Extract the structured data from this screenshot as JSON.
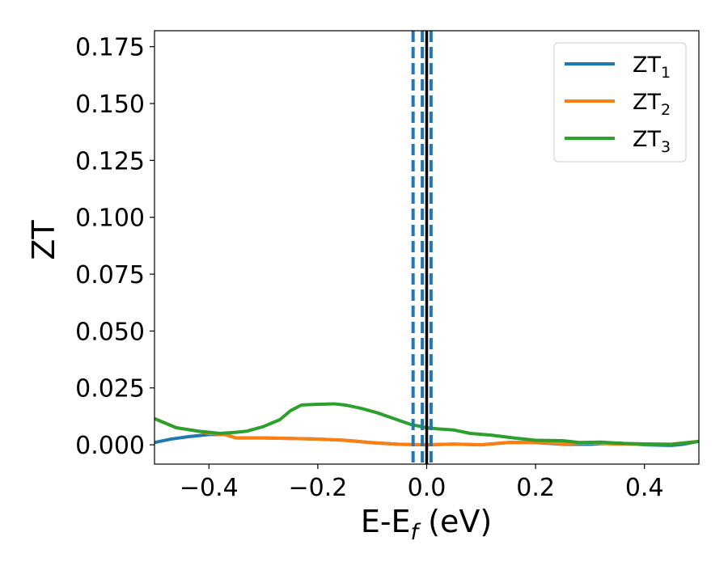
{
  "chart_data": {
    "type": "line",
    "xlabel": "E-E",
    "xlabel_sub": "f",
    "xlabel_unit": " (eV)",
    "ylabel": "ZT",
    "xlim": [
      -0.5,
      0.5
    ],
    "ylim": [
      -0.0085,
      0.182
    ],
    "xticks": [
      -0.4,
      -0.2,
      0.0,
      0.2,
      0.4
    ],
    "xtick_labels": [
      "−0.4",
      "−0.2",
      "0.0",
      "0.2",
      "0.4"
    ],
    "yticks": [
      0.0,
      0.025,
      0.05,
      0.075,
      0.1,
      0.125,
      0.15,
      0.175
    ],
    "ytick_labels": [
      "0.000",
      "0.025",
      "0.050",
      "0.075",
      "0.100",
      "0.125",
      "0.150",
      "0.175"
    ],
    "grid": false,
    "legend_position": "top-right",
    "series": [
      {
        "name": "ZT",
        "sub": "1",
        "color": "#1f77b4",
        "points": [
          [
            -0.5,
            0.001
          ],
          [
            -0.47,
            0.0025
          ],
          [
            -0.44,
            0.0035
          ],
          [
            -0.4,
            0.0045
          ],
          [
            -0.37,
            0.0045
          ],
          [
            -0.35,
            0.003
          ],
          [
            -0.3,
            0.003
          ],
          [
            -0.25,
            0.0028
          ],
          [
            -0.2,
            0.0025
          ],
          [
            -0.15,
            0.002
          ],
          [
            -0.1,
            0.0009
          ],
          [
            -0.05,
            0.0002
          ],
          [
            0.0,
            0.0
          ],
          [
            0.05,
            0.0003
          ],
          [
            0.1,
            0.0
          ],
          [
            0.15,
            0.001
          ],
          [
            0.2,
            0.001
          ],
          [
            0.25,
            0.0002
          ],
          [
            0.3,
            0.0002
          ],
          [
            0.35,
            0.0008
          ],
          [
            0.4,
            0.0
          ],
          [
            0.45,
            -0.0003
          ],
          [
            0.47,
            0.0002
          ],
          [
            0.5,
            0.0015
          ]
        ]
      },
      {
        "name": "ZT",
        "sub": "2",
        "color": "#ff7f0e",
        "points": [
          [
            -0.5,
            0.0115
          ],
          [
            -0.46,
            0.0075
          ],
          [
            -0.42,
            0.006
          ],
          [
            -0.4,
            0.005
          ],
          [
            -0.37,
            0.0045
          ],
          [
            -0.35,
            0.003
          ],
          [
            -0.3,
            0.003
          ],
          [
            -0.25,
            0.0028
          ],
          [
            -0.2,
            0.0025
          ],
          [
            -0.15,
            0.002
          ],
          [
            -0.1,
            0.0009
          ],
          [
            -0.05,
            0.0002
          ],
          [
            0.0,
            0.0
          ],
          [
            0.05,
            0.0003
          ],
          [
            0.1,
            0.0
          ],
          [
            0.15,
            0.001
          ],
          [
            0.2,
            0.0012
          ],
          [
            0.25,
            0.0004
          ],
          [
            0.3,
            0.0008
          ],
          [
            0.35,
            0.0003
          ],
          [
            0.4,
            0.0002
          ],
          [
            0.45,
            0.0003
          ],
          [
            0.5,
            0.0015
          ]
        ]
      },
      {
        "name": "ZT",
        "sub": "3",
        "color": "#2ca02c",
        "points": [
          [
            -0.5,
            0.0115
          ],
          [
            -0.46,
            0.0075
          ],
          [
            -0.42,
            0.006
          ],
          [
            -0.38,
            0.005
          ],
          [
            -0.35,
            0.0055
          ],
          [
            -0.33,
            0.006
          ],
          [
            -0.3,
            0.008
          ],
          [
            -0.27,
            0.011
          ],
          [
            -0.25,
            0.015
          ],
          [
            -0.23,
            0.0175
          ],
          [
            -0.2,
            0.0178
          ],
          [
            -0.17,
            0.018
          ],
          [
            -0.15,
            0.0175
          ],
          [
            -0.12,
            0.016
          ],
          [
            -0.09,
            0.014
          ],
          [
            -0.06,
            0.0115
          ],
          [
            -0.03,
            0.009
          ],
          [
            0.0,
            0.0075
          ],
          [
            0.02,
            0.007
          ],
          [
            0.05,
            0.0065
          ],
          [
            0.08,
            0.005
          ],
          [
            0.12,
            0.0042
          ],
          [
            0.16,
            0.003
          ],
          [
            0.2,
            0.002
          ],
          [
            0.25,
            0.0018
          ],
          [
            0.28,
            0.001
          ],
          [
            0.32,
            0.0012
          ],
          [
            0.36,
            0.0006
          ],
          [
            0.4,
            0.0004
          ],
          [
            0.45,
            0.0002
          ],
          [
            0.5,
            0.0015
          ]
        ]
      }
    ],
    "vlines": [
      {
        "x": -0.025,
        "style": "dashed",
        "color": "#1f77b4"
      },
      {
        "x": -0.008,
        "style": "dashed",
        "color": "#1f77b4"
      },
      {
        "x": 0.008,
        "style": "dashed",
        "color": "#1f77b4"
      },
      {
        "x": 0.0,
        "style": "solid",
        "color": "#000000"
      }
    ]
  }
}
